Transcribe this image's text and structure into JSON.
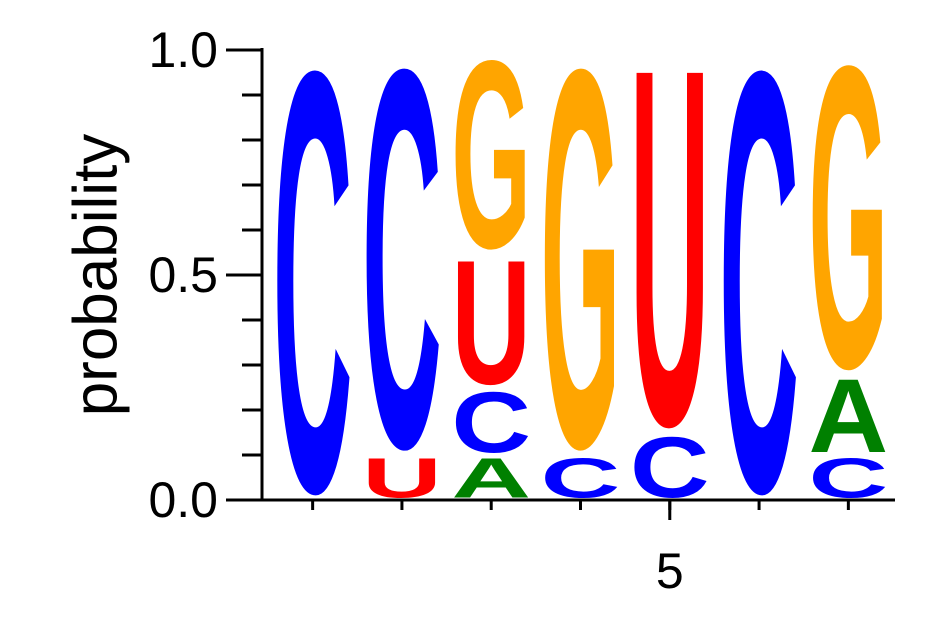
{
  "chart_data": {
    "type": "logo",
    "y_label": "probability",
    "x": [
      1,
      2,
      3,
      4,
      5,
      6,
      7
    ],
    "xlim": [
      0.5,
      7.5
    ],
    "xticks": [
      5
    ],
    "ylim": [
      0,
      1
    ],
    "yticks": [
      {
        "value": 0,
        "label": "0.0"
      },
      {
        "value": 0.5,
        "label": "0.5"
      },
      {
        "value": 1,
        "label": "1.0"
      }
    ],
    "yminorticks": [
      0.1,
      0.2,
      0.3,
      0.4,
      0.6,
      0.7,
      0.8,
      0.9
    ],
    "series": [
      {
        "name": "A",
        "color": "#008000",
        "values": [
          0,
          0,
          0.1,
          0,
          0,
          0,
          0.18
        ]
      },
      {
        "name": "C",
        "color": "#0000ff",
        "values": [
          1,
          0.9,
          0.15,
          0.1,
          0.15,
          1,
          0.1
        ]
      },
      {
        "name": "G",
        "color": "#ffa500",
        "values": [
          0,
          0,
          0.45,
          0.9,
          0,
          0,
          0.72
        ]
      },
      {
        "name": "U",
        "color": "#ff0000",
        "values": [
          0,
          0.1,
          0.3,
          0,
          0.85,
          0,
          0
        ]
      }
    ]
  }
}
